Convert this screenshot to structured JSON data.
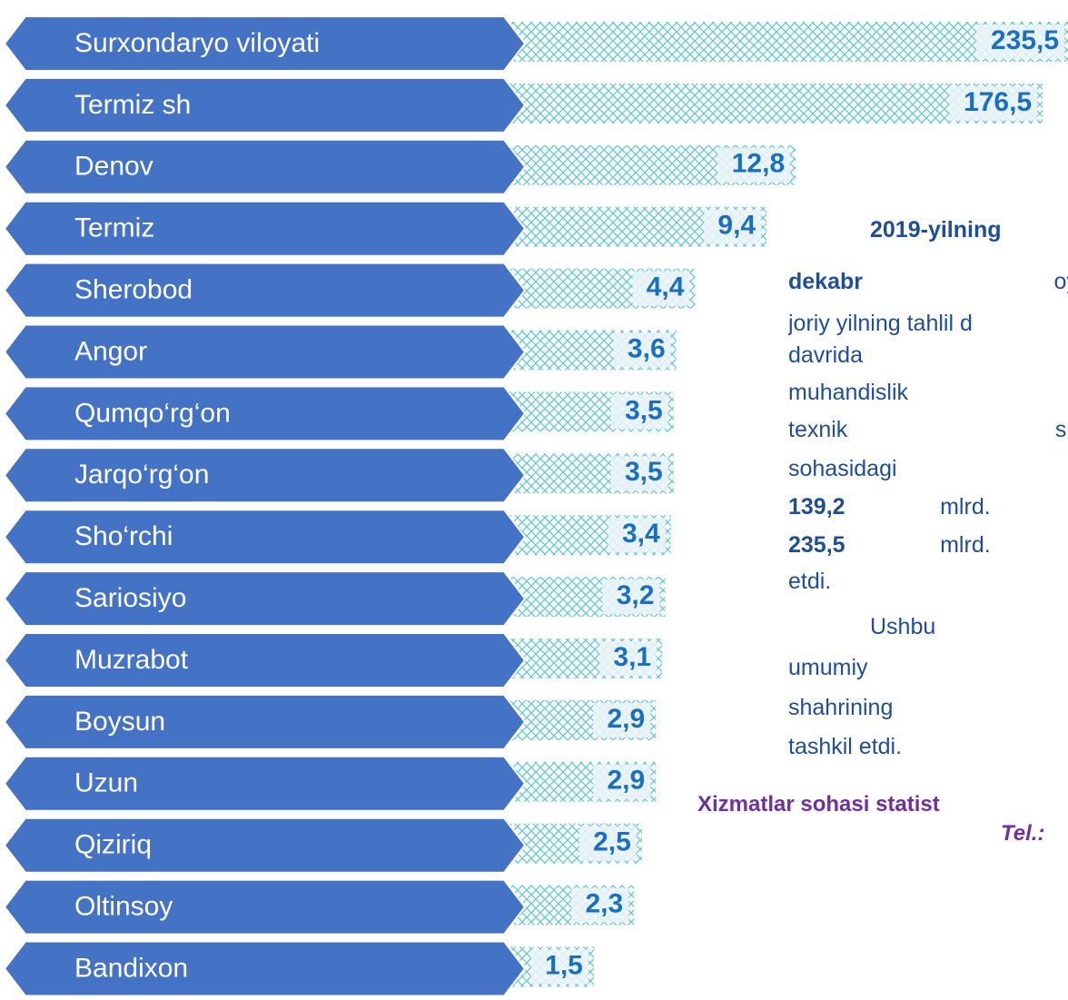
{
  "chart_data": {
    "type": "bar",
    "orientation": "horizontal",
    "log_scale": true,
    "categories": [
      "Surxondaryo viloyati",
      "Termiz sh",
      "Denov",
      "Termiz",
      "Sherobod",
      "Angor",
      "Qumqo‘rg‘on",
      "Jarqo‘rg‘on",
      "Sho‘rchi",
      "Sariosiyo",
      "Muzrabot",
      "Boysun",
      "Uzun",
      "Qiziriq",
      "Oltinsoy",
      "Bandixon"
    ],
    "values": [
      235.5,
      176.5,
      12.8,
      9.4,
      4.4,
      3.6,
      3.5,
      3.5,
      3.4,
      3.2,
      3.1,
      2.9,
      2.9,
      2.5,
      2.3,
      1.5
    ],
    "value_labels": [
      "235,5",
      "176,5",
      "12,8",
      "9,4",
      "4,4",
      "3,6",
      "3,5",
      "3,5",
      "3,4",
      "3,2",
      "3,1",
      "2,9",
      "2,9",
      "2,5",
      "2,3",
      "1,5"
    ],
    "color": "#4472c4",
    "xlim": [
      0.5,
      240
    ]
  },
  "notes": [
    [
      {
        "text": "2019-yilning",
        "bold": true
      }
    ],
    [
      {
        "text": "dekabr",
        "bold": true
      },
      {
        "text": " oylariga"
      }
    ],
    [
      {
        "text": "joriy yilning tahlil d"
      }
    ],
    [
      {
        "text": "davrida m"
      }
    ],
    [
      {
        "text": "muhandislik"
      }
    ],
    [
      {
        "text": "texnik sinovlar"
      }
    ],
    [
      {
        "text": "sohasidagi xizma"
      }
    ],
    [
      {
        "text": "139,2",
        "bold": true
      },
      {
        "text": " mlrd. so‘m"
      }
    ],
    [
      {
        "text": "235,5",
        "bold": true
      },
      {
        "text": " mlrd. so‘m"
      }
    ],
    [
      {
        "text": "etdi."
      }
    ],
    [
      {
        "text": "Ushbu xiz"
      }
    ],
    [
      {
        "text": "umumiy hajmid"
      }
    ],
    [
      {
        "text": "shahrining ulushi"
      }
    ],
    [
      {
        "text": "tashkil etdi."
      }
    ]
  ],
  "footer": {
    "department": "Xizmatlar sohasi statist",
    "phone": "Tel.:"
  }
}
